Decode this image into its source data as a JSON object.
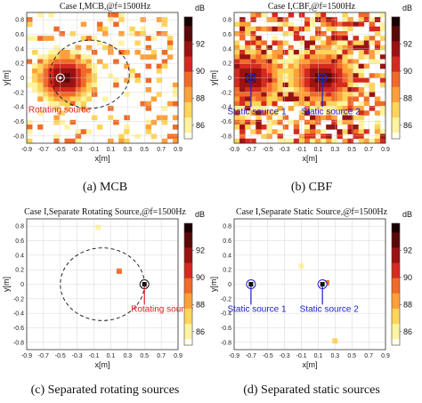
{
  "colormap": [
    "#fffff0",
    "#fff3a0",
    "#ffd45a",
    "#ffa03a",
    "#f06a2a",
    "#d42a20",
    "#9a1212",
    "#5a0808",
    "#1a0000"
  ],
  "chart_data": [
    {
      "type": "heatmap",
      "title": "Case I,MCB,@f=1500Hz",
      "caption": "(a)  MCB",
      "xlabel": "x[m]",
      "ylabel": "y[m]",
      "xlim": [
        -0.9,
        0.9
      ],
      "ylim": [
        -0.9,
        0.9
      ],
      "xticks": [
        "-0.9",
        "-0.7",
        "-0.5",
        "-0.3",
        "-0.1",
        "0.1",
        "0.3",
        "0.5",
        "0.7",
        "0.9"
      ],
      "yticks": [
        "0.8",
        "0.6",
        "0.4",
        "0.2",
        "0",
        "-0.2",
        "-0.4",
        "-0.6",
        "-0.8"
      ],
      "colorbar": {
        "label": "dB",
        "ticks": [
          "92",
          "90",
          "88",
          "86"
        ],
        "range": [
          85,
          94
        ]
      },
      "hotspots": [
        {
          "x": -0.45,
          "y": 0.0,
          "r": 0.22,
          "peak": 94
        }
      ],
      "blob_density": 0.28,
      "seed": 11,
      "trajectory": {
        "cx": -0.15,
        "cy": 0.05,
        "r": 0.47
      },
      "markers": [
        {
          "x": -0.5,
          "y": 0.0,
          "style": "ring"
        }
      ],
      "annotations": [
        {
          "text": "Rotating source",
          "x": -0.88,
          "y": -0.48,
          "color": "red"
        }
      ]
    },
    {
      "type": "heatmap",
      "title": "Case I,CBF,@f=1500Hz",
      "caption": "(b)  CBF",
      "xlabel": "x[m]",
      "ylabel": "y[m]",
      "xlim": [
        -0.9,
        0.9
      ],
      "ylim": [
        -0.9,
        0.9
      ],
      "xticks": [
        "-0.9",
        "-0.7",
        "-0.5",
        "-0.3",
        "-0.1",
        "0.1",
        "0.3",
        "0.5",
        "0.7",
        "0.9"
      ],
      "yticks": [
        "0.8",
        "0.6",
        "0.4",
        "0.2",
        "0",
        "-0.2",
        "-0.4",
        "-0.6",
        "-0.8"
      ],
      "colorbar": {
        "label": "dB",
        "ticks": [
          "92",
          "90",
          "88",
          "86"
        ],
        "range": [
          85,
          94
        ]
      },
      "hotspots": [
        {
          "x": -0.7,
          "y": 0.0,
          "r": 0.25,
          "peak": 94
        },
        {
          "x": 0.15,
          "y": 0.0,
          "r": 0.25,
          "peak": 94
        }
      ],
      "blob_density": 0.62,
      "seed": 23,
      "trajectory": null,
      "markers": [
        {
          "x": -0.7,
          "y": 0.0,
          "style": "ring-blue"
        },
        {
          "x": 0.15,
          "y": 0.0,
          "style": "ring-blue"
        }
      ],
      "annotations": [
        {
          "text": "Static source 1",
          "x": -0.98,
          "y": -0.5,
          "color": "blue",
          "leader": [
            -0.7,
            -0.02,
            -0.7,
            -0.4
          ]
        },
        {
          "text": "Static source 2",
          "x": -0.1,
          "y": -0.5,
          "color": "blue",
          "leader": [
            0.15,
            -0.02,
            0.15,
            -0.4
          ]
        }
      ]
    },
    {
      "type": "heatmap",
      "title": "Case I,Separate Rotating Source,@f=1500Hz",
      "caption": "(c)  Separated rotating sources",
      "xlabel": "x[m]",
      "ylabel": "y[m]",
      "xlim": [
        -0.9,
        0.9
      ],
      "ylim": [
        -0.9,
        0.9
      ],
      "xticks": [
        "-0.9",
        "-0.7",
        "-0.5",
        "-0.3",
        "-0.1",
        "0.1",
        "0.3",
        "0.5",
        "0.7",
        "0.9"
      ],
      "yticks": [
        "0.8",
        "0.6",
        "0.4",
        "0.2",
        "0",
        "-0.2",
        "-0.4",
        "-0.6",
        "-0.8"
      ],
      "colorbar": {
        "label": "dB",
        "ticks": [
          "92",
          "90",
          "88",
          "86"
        ],
        "range": [
          85,
          94
        ]
      },
      "hotspots": [],
      "blob_density": 0,
      "seed": 5,
      "trajectory": {
        "cx": 0.0,
        "cy": 0.0,
        "r": 0.5
      },
      "points": [
        {
          "x": 0.2,
          "y": 0.18,
          "v": 89
        },
        {
          "x": -0.05,
          "y": 0.78,
          "v": 86
        }
      ],
      "markers": [
        {
          "x": 0.5,
          "y": 0.0,
          "style": "square-ring"
        }
      ],
      "annotations": [
        {
          "text": "Rotating source",
          "x": 0.34,
          "y": -0.38,
          "color": "red",
          "leader": [
            0.5,
            -0.03,
            0.5,
            -0.28
          ]
        }
      ]
    },
    {
      "type": "heatmap",
      "title": "Case I,Separate Static Source,@f=1500Hz",
      "caption": "(d)  Separated static sources",
      "xlabel": "x[m]",
      "ylabel": "y[m]",
      "xlim": [
        -0.9,
        0.9
      ],
      "ylim": [
        -0.9,
        0.9
      ],
      "xticks": [
        "-0.9",
        "-0.7",
        "-0.5",
        "-0.3",
        "-0.1",
        "0.1",
        "0.3",
        "0.5",
        "0.7",
        "0.9"
      ],
      "yticks": [
        "0.8",
        "0.6",
        "0.4",
        "0.2",
        "0",
        "-0.2",
        "-0.4",
        "-0.6",
        "-0.8"
      ],
      "colorbar": {
        "label": "dB",
        "ticks": [
          "92",
          "90",
          "88",
          "86"
        ],
        "range": [
          85,
          94
        ]
      },
      "hotspots": [],
      "blob_density": 0,
      "seed": 7,
      "trajectory": null,
      "points": [
        {
          "x": -0.1,
          "y": 0.25,
          "v": 86
        },
        {
          "x": 0.2,
          "y": 0.02,
          "v": 89
        },
        {
          "x": 0.3,
          "y": -0.78,
          "v": 87
        }
      ],
      "markers": [
        {
          "x": -0.7,
          "y": 0.0,
          "style": "square-ring-blue"
        },
        {
          "x": 0.15,
          "y": 0.0,
          "style": "square-ring-blue"
        }
      ],
      "annotations": [
        {
          "text": "Static source 1",
          "x": -0.98,
          "y": -0.38,
          "color": "blue",
          "leader": [
            -0.7,
            -0.03,
            -0.7,
            -0.28
          ]
        },
        {
          "text": "Static source 2",
          "x": -0.12,
          "y": -0.38,
          "color": "blue",
          "leader": [
            0.15,
            -0.03,
            0.15,
            -0.28
          ]
        }
      ]
    }
  ]
}
